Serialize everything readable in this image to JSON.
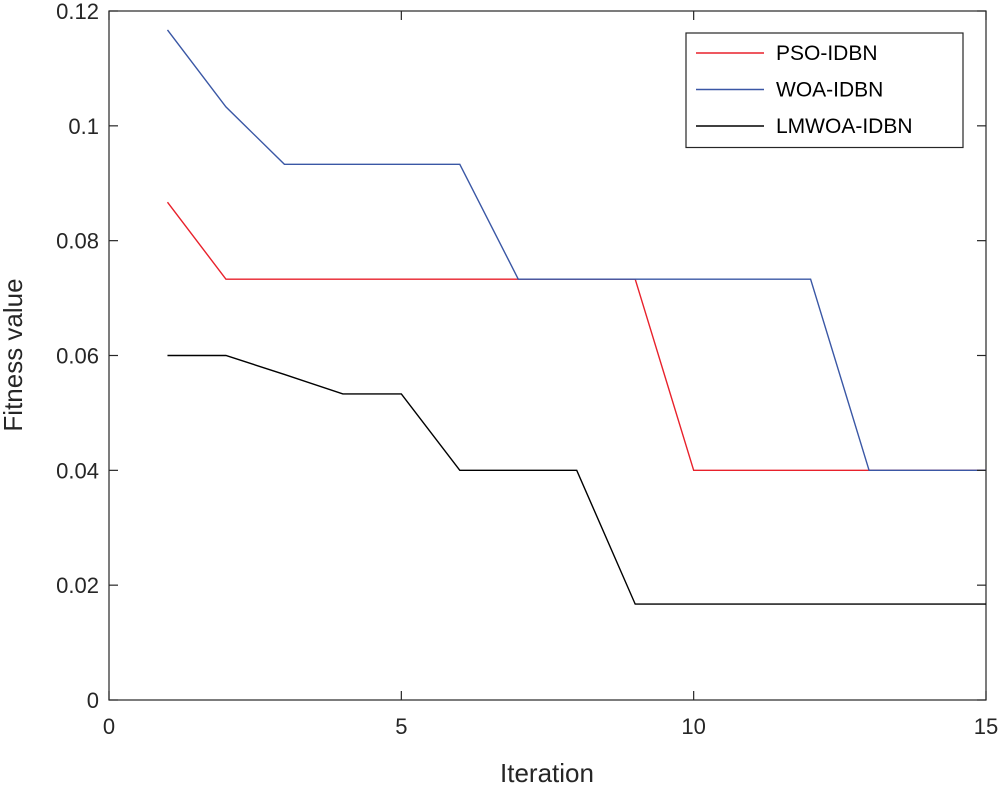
{
  "chart_data": {
    "type": "line",
    "title": "",
    "xlabel": "Iteration",
    "ylabel": "Fitness value",
    "xlim": [
      0,
      15
    ],
    "ylim": [
      0,
      0.12
    ],
    "xticks": [
      0,
      5,
      10,
      15
    ],
    "xtick_labels": [
      "0",
      "5",
      "10",
      "15"
    ],
    "yticks": [
      0,
      0.02,
      0.04,
      0.06,
      0.08,
      0.1,
      0.12
    ],
    "ytick_labels": [
      "0",
      "0.02",
      "0.04",
      "0.06",
      "0.08",
      "0.1",
      "0.12"
    ],
    "grid": false,
    "legend_position": "top-right",
    "x": [
      1,
      2,
      3,
      4,
      5,
      6,
      7,
      8,
      9,
      10,
      11,
      12,
      13,
      14,
      15
    ],
    "series": [
      {
        "name": "PSO-IDBN",
        "color": "#e8212b",
        "values": [
          0.0867,
          0.0733,
          0.0733,
          0.0733,
          0.0733,
          0.0733,
          0.0733,
          0.0733,
          0.0733,
          0.04,
          0.04,
          0.04,
          0.04,
          0.04,
          0.04
        ]
      },
      {
        "name": "WOA-IDBN",
        "color": "#3a57a5",
        "values": [
          0.1167,
          0.1033,
          0.0933,
          0.0933,
          0.0933,
          0.0933,
          0.0733,
          0.0733,
          0.0733,
          0.0733,
          0.0733,
          0.0733,
          0.04,
          0.04,
          0.04
        ]
      },
      {
        "name": "LMWOA-IDBN",
        "color": "#000000",
        "values": [
          0.06,
          0.06,
          0.0567,
          0.0533,
          0.0533,
          0.04,
          0.04,
          0.04,
          0.0167,
          0.0167,
          0.0167,
          0.0167,
          0.0167,
          0.0167,
          0.0167
        ]
      }
    ]
  }
}
